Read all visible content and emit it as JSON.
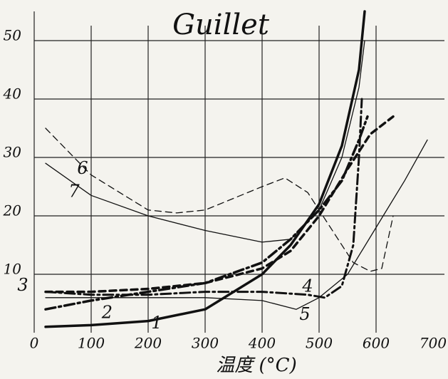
{
  "chart_data": {
    "type": "line",
    "title": "Guillet",
    "x_label": "温度 (°C)",
    "xlim": [
      0,
      720
    ],
    "ylim": [
      0,
      55
    ],
    "xticks": [
      0,
      100,
      200,
      300,
      400,
      500,
      600,
      700
    ],
    "yticks": [
      10,
      20,
      30,
      40,
      50
    ],
    "grid": true,
    "color": "#111111",
    "series": [
      {
        "name": "1",
        "style": "solid",
        "width": 3.5,
        "x": [
          20,
          100,
          200,
          300,
          400,
          450,
          500,
          540,
          570,
          580
        ],
        "values": [
          1,
          1.3,
          2,
          4,
          10,
          15,
          22,
          32,
          45,
          55
        ]
      },
      {
        "name": "2",
        "style": "dashdot",
        "width": 3.5,
        "x": [
          20,
          100,
          200,
          300,
          400,
          450,
          500,
          540,
          570,
          585
        ],
        "values": [
          4,
          5.5,
          7,
          8.5,
          12,
          16,
          21,
          26,
          33,
          37
        ]
      },
      {
        "name": "3",
        "style": "dash",
        "width": 3.5,
        "x": [
          20,
          100,
          200,
          300,
          400,
          450,
          500,
          550,
          590,
          630
        ],
        "values": [
          7,
          7,
          7.5,
          8.5,
          11,
          14,
          20,
          28,
          34,
          37
        ]
      },
      {
        "name": "4",
        "style": "dashdot",
        "width": 3,
        "x": [
          20,
          100,
          200,
          300,
          400,
          480,
          510,
          540,
          560,
          570,
          575
        ],
        "values": [
          7,
          6.5,
          6.5,
          7,
          7,
          6.5,
          6,
          8,
          15,
          30,
          40
        ]
      },
      {
        "name": "5",
        "style": "solid",
        "width": 1.3,
        "x": [
          20,
          200,
          300,
          400,
          460,
          500,
          550,
          600,
          650,
          690
        ],
        "values": [
          6,
          6,
          6,
          5.5,
          4,
          6,
          10,
          18,
          26,
          33
        ]
      },
      {
        "name": "6",
        "style": "dash",
        "width": 1.3,
        "x": [
          20,
          100,
          200,
          250,
          300,
          400,
          440,
          480,
          520,
          560,
          590,
          610,
          630
        ],
        "values": [
          35,
          27,
          21,
          20.5,
          21,
          25,
          26.5,
          24,
          18,
          12,
          10.5,
          11,
          20
        ]
      },
      {
        "name": "7",
        "style": "solid",
        "width": 1.3,
        "x": [
          20,
          100,
          200,
          300,
          400,
          450,
          500,
          540,
          570,
          580
        ],
        "values": [
          29,
          23.5,
          20,
          17.5,
          15.5,
          16,
          21,
          30,
          42,
          50
        ]
      }
    ]
  }
}
